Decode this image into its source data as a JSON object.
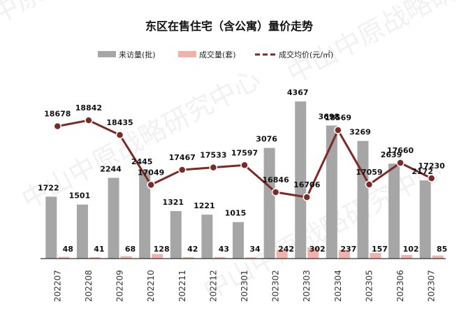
{
  "chart_data": {
    "type": "bar",
    "title": "东区在售住宅（含公寓）量价走势",
    "watermark": "中山中原战略研究中心",
    "categories": [
      "202207",
      "202208",
      "202209",
      "202210",
      "202211",
      "202212",
      "202301",
      "202302",
      "202303",
      "202304",
      "202305",
      "202306",
      "202307"
    ],
    "legend_position": "top",
    "grid": false,
    "series": [
      {
        "name": "来访量(批)",
        "type": "bar",
        "axis": "left",
        "color": "#a6a6a6",
        "values": [
          1722,
          1501,
          2244,
          2445,
          1321,
          1221,
          1015,
          3076,
          4367,
          3698,
          3269,
          2639,
          2172
        ]
      },
      {
        "name": "成交量(套)",
        "type": "bar",
        "axis": "left",
        "color": "#f0b2aa",
        "values": [
          48,
          41,
          68,
          128,
          42,
          43,
          34,
          242,
          302,
          237,
          157,
          102,
          85
        ]
      },
      {
        "name": "成交均价(元/㎡)",
        "type": "line",
        "axis": "right",
        "color": "#7b2a26",
        "values": [
          18678,
          18842,
          18435,
          17049,
          17467,
          17533,
          17597,
          16846,
          16706,
          18569,
          17059,
          17660,
          17230
        ]
      }
    ],
    "left_axis_range": [
      0,
      4700
    ],
    "right_axis_range": [
      15000,
      19700
    ]
  }
}
